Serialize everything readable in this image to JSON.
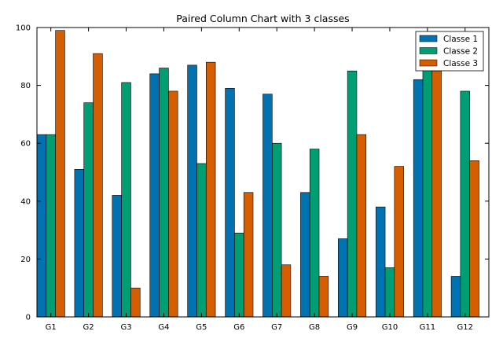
{
  "chart_data": {
    "type": "bar",
    "title": "Paired Column Chart with 3 classes",
    "xlabel": "",
    "ylabel": "",
    "categories": [
      "G1",
      "G2",
      "G3",
      "G4",
      "G5",
      "G6",
      "G7",
      "G8",
      "G9",
      "G10",
      "G11",
      "G12"
    ],
    "ylim": [
      0,
      100
    ],
    "yticks": [
      0,
      20,
      40,
      60,
      80,
      100
    ],
    "grid": false,
    "legend_position": "top-right",
    "series": [
      {
        "name": "Classe 1",
        "color": "#0072b2",
        "values": [
          63,
          51,
          42,
          84,
          87,
          79,
          77,
          43,
          27,
          38,
          82,
          14
        ]
      },
      {
        "name": "Classe 2",
        "color": "#009e73",
        "values": [
          63,
          74,
          81,
          86,
          53,
          29,
          60,
          58,
          85,
          17,
          86,
          78
        ]
      },
      {
        "name": "Classe 3",
        "color": "#d55e00",
        "values": [
          99,
          91,
          10,
          78,
          88,
          43,
          18,
          14,
          63,
          52,
          85,
          54
        ]
      }
    ]
  }
}
